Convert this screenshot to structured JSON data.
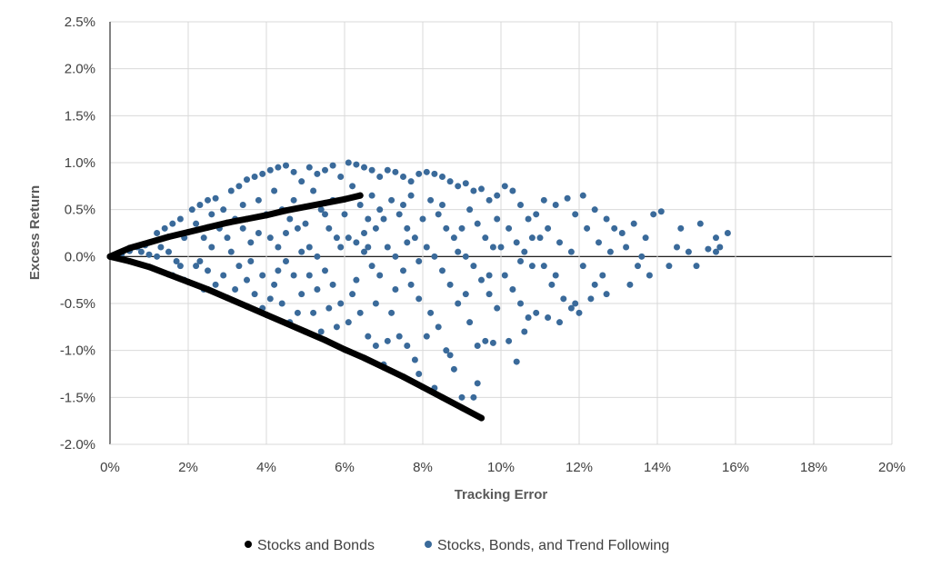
{
  "chart_data": {
    "type": "scatter",
    "xlabel": "Tracking Error",
    "ylabel": "Excess Return",
    "xlim": [
      0,
      20
    ],
    "ylim": [
      -2.0,
      2.5
    ],
    "x_ticks": [
      "0%",
      "2%",
      "4%",
      "6%",
      "8%",
      "10%",
      "12%",
      "14%",
      "16%",
      "18%",
      "20%"
    ],
    "y_ticks": [
      "2.5%",
      "2.0%",
      "1.5%",
      "1.0%",
      "0.5%",
      "0.0%",
      "-0.5%",
      "-1.0%",
      "-1.5%",
      "-2.0%"
    ],
    "grid": true,
    "legend_position": "bottom",
    "series": [
      {
        "name": "Stocks and Bonds",
        "color": "#000000",
        "points": [
          [
            0,
            0
          ],
          [
            0.5,
            0.09
          ],
          [
            1,
            0.15
          ],
          [
            1.5,
            0.21
          ],
          [
            2,
            0.26
          ],
          [
            2.5,
            0.31
          ],
          [
            3,
            0.36
          ],
          [
            3.5,
            0.4
          ],
          [
            4,
            0.44
          ],
          [
            4.5,
            0.49
          ],
          [
            5,
            0.53
          ],
          [
            5.5,
            0.57
          ],
          [
            6,
            0.61
          ],
          [
            6.4,
            0.65
          ],
          [
            0.5,
            -0.05
          ],
          [
            1,
            -0.11
          ],
          [
            1.5,
            -0.19
          ],
          [
            2,
            -0.27
          ],
          [
            2.5,
            -0.35
          ],
          [
            3,
            -0.44
          ],
          [
            3.5,
            -0.53
          ],
          [
            4,
            -0.62
          ],
          [
            4.5,
            -0.71
          ],
          [
            5,
            -0.8
          ],
          [
            5.5,
            -0.89
          ],
          [
            6,
            -0.99
          ],
          [
            6.5,
            -1.08
          ],
          [
            7,
            -1.18
          ],
          [
            7.5,
            -1.28
          ],
          [
            8,
            -1.39
          ],
          [
            8.5,
            -1.5
          ],
          [
            9,
            -1.61
          ],
          [
            9.5,
            -1.72
          ]
        ]
      },
      {
        "name": "Stocks, Bonds, and Trend Following",
        "color": "#3a6a9a",
        "points": [
          [
            0.3,
            0.03
          ],
          [
            0.5,
            0.06
          ],
          [
            0.7,
            0.1
          ],
          [
            0.9,
            0.12
          ],
          [
            0.8,
            0.05
          ],
          [
            1.0,
            0.02
          ],
          [
            1.2,
            0.25
          ],
          [
            1.4,
            0.3
          ],
          [
            1.6,
            0.35
          ],
          [
            1.8,
            0.4
          ],
          [
            1.3,
            0.1
          ],
          [
            1.5,
            0.05
          ],
          [
            1.7,
            -0.05
          ],
          [
            1.9,
            0.2
          ],
          [
            1.6,
            -0.2
          ],
          [
            1.8,
            -0.1
          ],
          [
            1.2,
            0.0
          ],
          [
            1.9,
            -0.25
          ],
          [
            2.1,
            0.5
          ],
          [
            2.3,
            0.55
          ],
          [
            2.5,
            0.6
          ],
          [
            2.7,
            0.62
          ],
          [
            2.2,
            0.35
          ],
          [
            2.4,
            0.2
          ],
          [
            2.6,
            0.1
          ],
          [
            2.8,
            0.3
          ],
          [
            2.3,
            -0.05
          ],
          [
            2.5,
            -0.15
          ],
          [
            2.7,
            -0.3
          ],
          [
            2.9,
            -0.2
          ],
          [
            2.2,
            -0.1
          ],
          [
            2.6,
            0.45
          ],
          [
            2.9,
            0.5
          ],
          [
            2.4,
            -0.35
          ],
          [
            3.1,
            0.7
          ],
          [
            3.3,
            0.75
          ],
          [
            3.5,
            0.82
          ],
          [
            3.7,
            0.85
          ],
          [
            3.9,
            0.88
          ],
          [
            3.2,
            0.4
          ],
          [
            3.4,
            0.3
          ],
          [
            3.6,
            0.15
          ],
          [
            3.8,
            0.25
          ],
          [
            3.1,
            0.05
          ],
          [
            3.3,
            -0.1
          ],
          [
            3.5,
            -0.25
          ],
          [
            3.7,
            -0.4
          ],
          [
            3.9,
            -0.55
          ],
          [
            3.2,
            -0.35
          ],
          [
            3.6,
            -0.05
          ],
          [
            3.8,
            0.6
          ],
          [
            3.4,
            0.55
          ],
          [
            3.9,
            -0.2
          ],
          [
            3.0,
            0.2
          ],
          [
            4.1,
            0.92
          ],
          [
            4.3,
            0.95
          ],
          [
            4.5,
            0.97
          ],
          [
            4.7,
            0.9
          ],
          [
            4.9,
            0.8
          ],
          [
            4.2,
            0.7
          ],
          [
            4.4,
            0.5
          ],
          [
            4.6,
            0.4
          ],
          [
            4.8,
            0.3
          ],
          [
            4.1,
            0.2
          ],
          [
            4.3,
            0.1
          ],
          [
            4.5,
            -0.05
          ],
          [
            4.7,
            -0.2
          ],
          [
            4.9,
            -0.4
          ],
          [
            4.2,
            -0.3
          ],
          [
            4.4,
            -0.5
          ],
          [
            4.6,
            -0.7
          ],
          [
            4.8,
            -0.6
          ],
          [
            4.0,
            0.45
          ],
          [
            4.5,
            0.25
          ],
          [
            4.9,
            0.05
          ],
          [
            4.3,
            -0.15
          ],
          [
            4.7,
            0.6
          ],
          [
            4.1,
            -0.45
          ],
          [
            5.1,
            0.95
          ],
          [
            5.3,
            0.88
          ],
          [
            5.5,
            0.92
          ],
          [
            5.7,
            0.97
          ],
          [
            5.9,
            0.85
          ],
          [
            5.2,
            0.7
          ],
          [
            5.4,
            0.5
          ],
          [
            5.6,
            0.3
          ],
          [
            5.8,
            0.2
          ],
          [
            5.1,
            0.1
          ],
          [
            5.3,
            0.0
          ],
          [
            5.5,
            -0.15
          ],
          [
            5.7,
            -0.3
          ],
          [
            5.9,
            -0.5
          ],
          [
            5.2,
            -0.6
          ],
          [
            5.4,
            -0.8
          ],
          [
            5.6,
            -0.55
          ],
          [
            5.8,
            -0.75
          ],
          [
            5.0,
            0.35
          ],
          [
            5.5,
            0.45
          ],
          [
            5.9,
            0.1
          ],
          [
            5.3,
            -0.35
          ],
          [
            5.7,
            0.6
          ],
          [
            5.1,
            -0.2
          ],
          [
            6.1,
            1.0
          ],
          [
            6.3,
            0.98
          ],
          [
            6.5,
            0.95
          ],
          [
            6.7,
            0.92
          ],
          [
            6.9,
            0.85
          ],
          [
            6.2,
            0.75
          ],
          [
            6.4,
            0.55
          ],
          [
            6.6,
            0.4
          ],
          [
            6.8,
            0.3
          ],
          [
            6.1,
            0.2
          ],
          [
            6.3,
            0.15
          ],
          [
            6.5,
            0.05
          ],
          [
            6.7,
            -0.1
          ],
          [
            6.9,
            -0.2
          ],
          [
            6.2,
            -0.4
          ],
          [
            6.4,
            -0.6
          ],
          [
            6.6,
            -0.85
          ],
          [
            6.8,
            -0.95
          ],
          [
            6.0,
            0.45
          ],
          [
            6.5,
            0.25
          ],
          [
            6.9,
            0.5
          ],
          [
            6.3,
            -0.25
          ],
          [
            6.7,
            0.65
          ],
          [
            6.1,
            -0.7
          ],
          [
            7.0,
            -1.15
          ],
          [
            6.6,
            0.1
          ],
          [
            6.8,
            -0.5
          ],
          [
            7.1,
            0.92
          ],
          [
            7.3,
            0.9
          ],
          [
            7.5,
            0.85
          ],
          [
            7.7,
            0.8
          ],
          [
            7.9,
            0.88
          ],
          [
            7.2,
            0.6
          ],
          [
            7.4,
            0.45
          ],
          [
            7.6,
            0.3
          ],
          [
            7.8,
            0.2
          ],
          [
            7.1,
            0.1
          ],
          [
            7.3,
            0.0
          ],
          [
            7.5,
            -0.15
          ],
          [
            7.7,
            -0.3
          ],
          [
            7.9,
            -0.45
          ],
          [
            7.2,
            -0.6
          ],
          [
            7.4,
            -0.85
          ],
          [
            7.6,
            -0.95
          ],
          [
            7.8,
            -1.1
          ],
          [
            7.0,
            0.4
          ],
          [
            7.5,
            0.55
          ],
          [
            7.9,
            -0.05
          ],
          [
            7.3,
            -0.35
          ],
          [
            7.7,
            0.65
          ],
          [
            7.1,
            -0.9
          ],
          [
            7.9,
            -1.25
          ],
          [
            7.6,
            0.15
          ],
          [
            8.1,
            0.9
          ],
          [
            8.3,
            0.88
          ],
          [
            8.5,
            0.85
          ],
          [
            8.7,
            0.8
          ],
          [
            8.9,
            0.75
          ],
          [
            8.2,
            0.6
          ],
          [
            8.4,
            0.45
          ],
          [
            8.6,
            0.3
          ],
          [
            8.8,
            0.2
          ],
          [
            8.1,
            0.1
          ],
          [
            8.3,
            0.0
          ],
          [
            8.5,
            -0.15
          ],
          [
            8.7,
            -0.3
          ],
          [
            8.9,
            -0.5
          ],
          [
            8.2,
            -0.6
          ],
          [
            8.4,
            -0.75
          ],
          [
            8.6,
            -1.0
          ],
          [
            8.8,
            -1.2
          ],
          [
            8.0,
            0.4
          ],
          [
            8.5,
            0.55
          ],
          [
            8.9,
            0.05
          ],
          [
            8.3,
            -1.4
          ],
          [
            8.7,
            -1.05
          ],
          [
            8.1,
            -0.85
          ],
          [
            9.0,
            -1.5
          ],
          [
            9.1,
            0.78
          ],
          [
            9.3,
            0.7
          ],
          [
            9.5,
            0.72
          ],
          [
            9.7,
            0.6
          ],
          [
            9.9,
            0.65
          ],
          [
            9.2,
            0.5
          ],
          [
            9.4,
            0.35
          ],
          [
            9.6,
            0.2
          ],
          [
            9.8,
            0.1
          ],
          [
            9.1,
            0.0
          ],
          [
            9.3,
            -0.1
          ],
          [
            9.5,
            -0.25
          ],
          [
            9.7,
            -0.4
          ],
          [
            9.9,
            -0.55
          ],
          [
            9.2,
            -0.7
          ],
          [
            9.4,
            -0.95
          ],
          [
            9.6,
            -0.9
          ],
          [
            9.8,
            -0.92
          ],
          [
            9.0,
            0.3
          ],
          [
            9.3,
            -1.5
          ],
          [
            9.4,
            -1.35
          ],
          [
            9.7,
            -0.2
          ],
          [
            9.9,
            0.4
          ],
          [
            9.1,
            -0.4
          ],
          [
            10.1,
            0.75
          ],
          [
            10.3,
            0.7
          ],
          [
            10.5,
            0.55
          ],
          [
            10.7,
            0.4
          ],
          [
            10.9,
            0.45
          ],
          [
            10.2,
            0.3
          ],
          [
            10.4,
            0.15
          ],
          [
            10.6,
            0.05
          ],
          [
            10.8,
            -0.1
          ],
          [
            10.1,
            -0.2
          ],
          [
            10.3,
            -0.35
          ],
          [
            10.5,
            -0.5
          ],
          [
            10.7,
            -0.65
          ],
          [
            10.9,
            -0.6
          ],
          [
            10.2,
            -0.9
          ],
          [
            10.4,
            -1.12
          ],
          [
            10.6,
            -0.8
          ],
          [
            10.0,
            0.1
          ],
          [
            10.5,
            -0.05
          ],
          [
            10.8,
            0.2
          ],
          [
            11.1,
            0.6
          ],
          [
            11.4,
            0.55
          ],
          [
            11.7,
            0.62
          ],
          [
            11.9,
            0.45
          ],
          [
            11.2,
            0.3
          ],
          [
            11.5,
            0.15
          ],
          [
            11.8,
            0.05
          ],
          [
            11.1,
            -0.1
          ],
          [
            11.3,
            -0.3
          ],
          [
            11.6,
            -0.45
          ],
          [
            11.9,
            -0.5
          ],
          [
            11.2,
            -0.65
          ],
          [
            11.5,
            -0.7
          ],
          [
            11.8,
            -0.55
          ],
          [
            11.0,
            0.2
          ],
          [
            11.4,
            -0.2
          ],
          [
            12.1,
            0.65
          ],
          [
            12.4,
            0.5
          ],
          [
            12.7,
            0.4
          ],
          [
            12.2,
            0.3
          ],
          [
            12.5,
            0.15
          ],
          [
            12.8,
            0.05
          ],
          [
            12.1,
            -0.1
          ],
          [
            12.4,
            -0.3
          ],
          [
            12.7,
            -0.4
          ],
          [
            12.3,
            -0.45
          ],
          [
            12.9,
            0.3
          ],
          [
            12.6,
            -0.2
          ],
          [
            12.0,
            -0.6
          ],
          [
            13.1,
            0.25
          ],
          [
            13.4,
            0.35
          ],
          [
            13.7,
            0.2
          ],
          [
            13.2,
            0.1
          ],
          [
            13.5,
            -0.1
          ],
          [
            13.8,
            -0.2
          ],
          [
            13.3,
            -0.3
          ],
          [
            13.9,
            0.45
          ],
          [
            13.6,
            0.0
          ],
          [
            14.1,
            0.48
          ],
          [
            14.3,
            -0.1
          ],
          [
            14.5,
            0.1
          ],
          [
            14.8,
            0.05
          ],
          [
            15.0,
            -0.1
          ],
          [
            15.1,
            0.35
          ],
          [
            15.3,
            0.08
          ],
          [
            15.5,
            0.2
          ],
          [
            15.6,
            0.1
          ],
          [
            15.8,
            0.25
          ],
          [
            14.6,
            0.3
          ],
          [
            15.5,
            0.05
          ]
        ]
      }
    ]
  }
}
